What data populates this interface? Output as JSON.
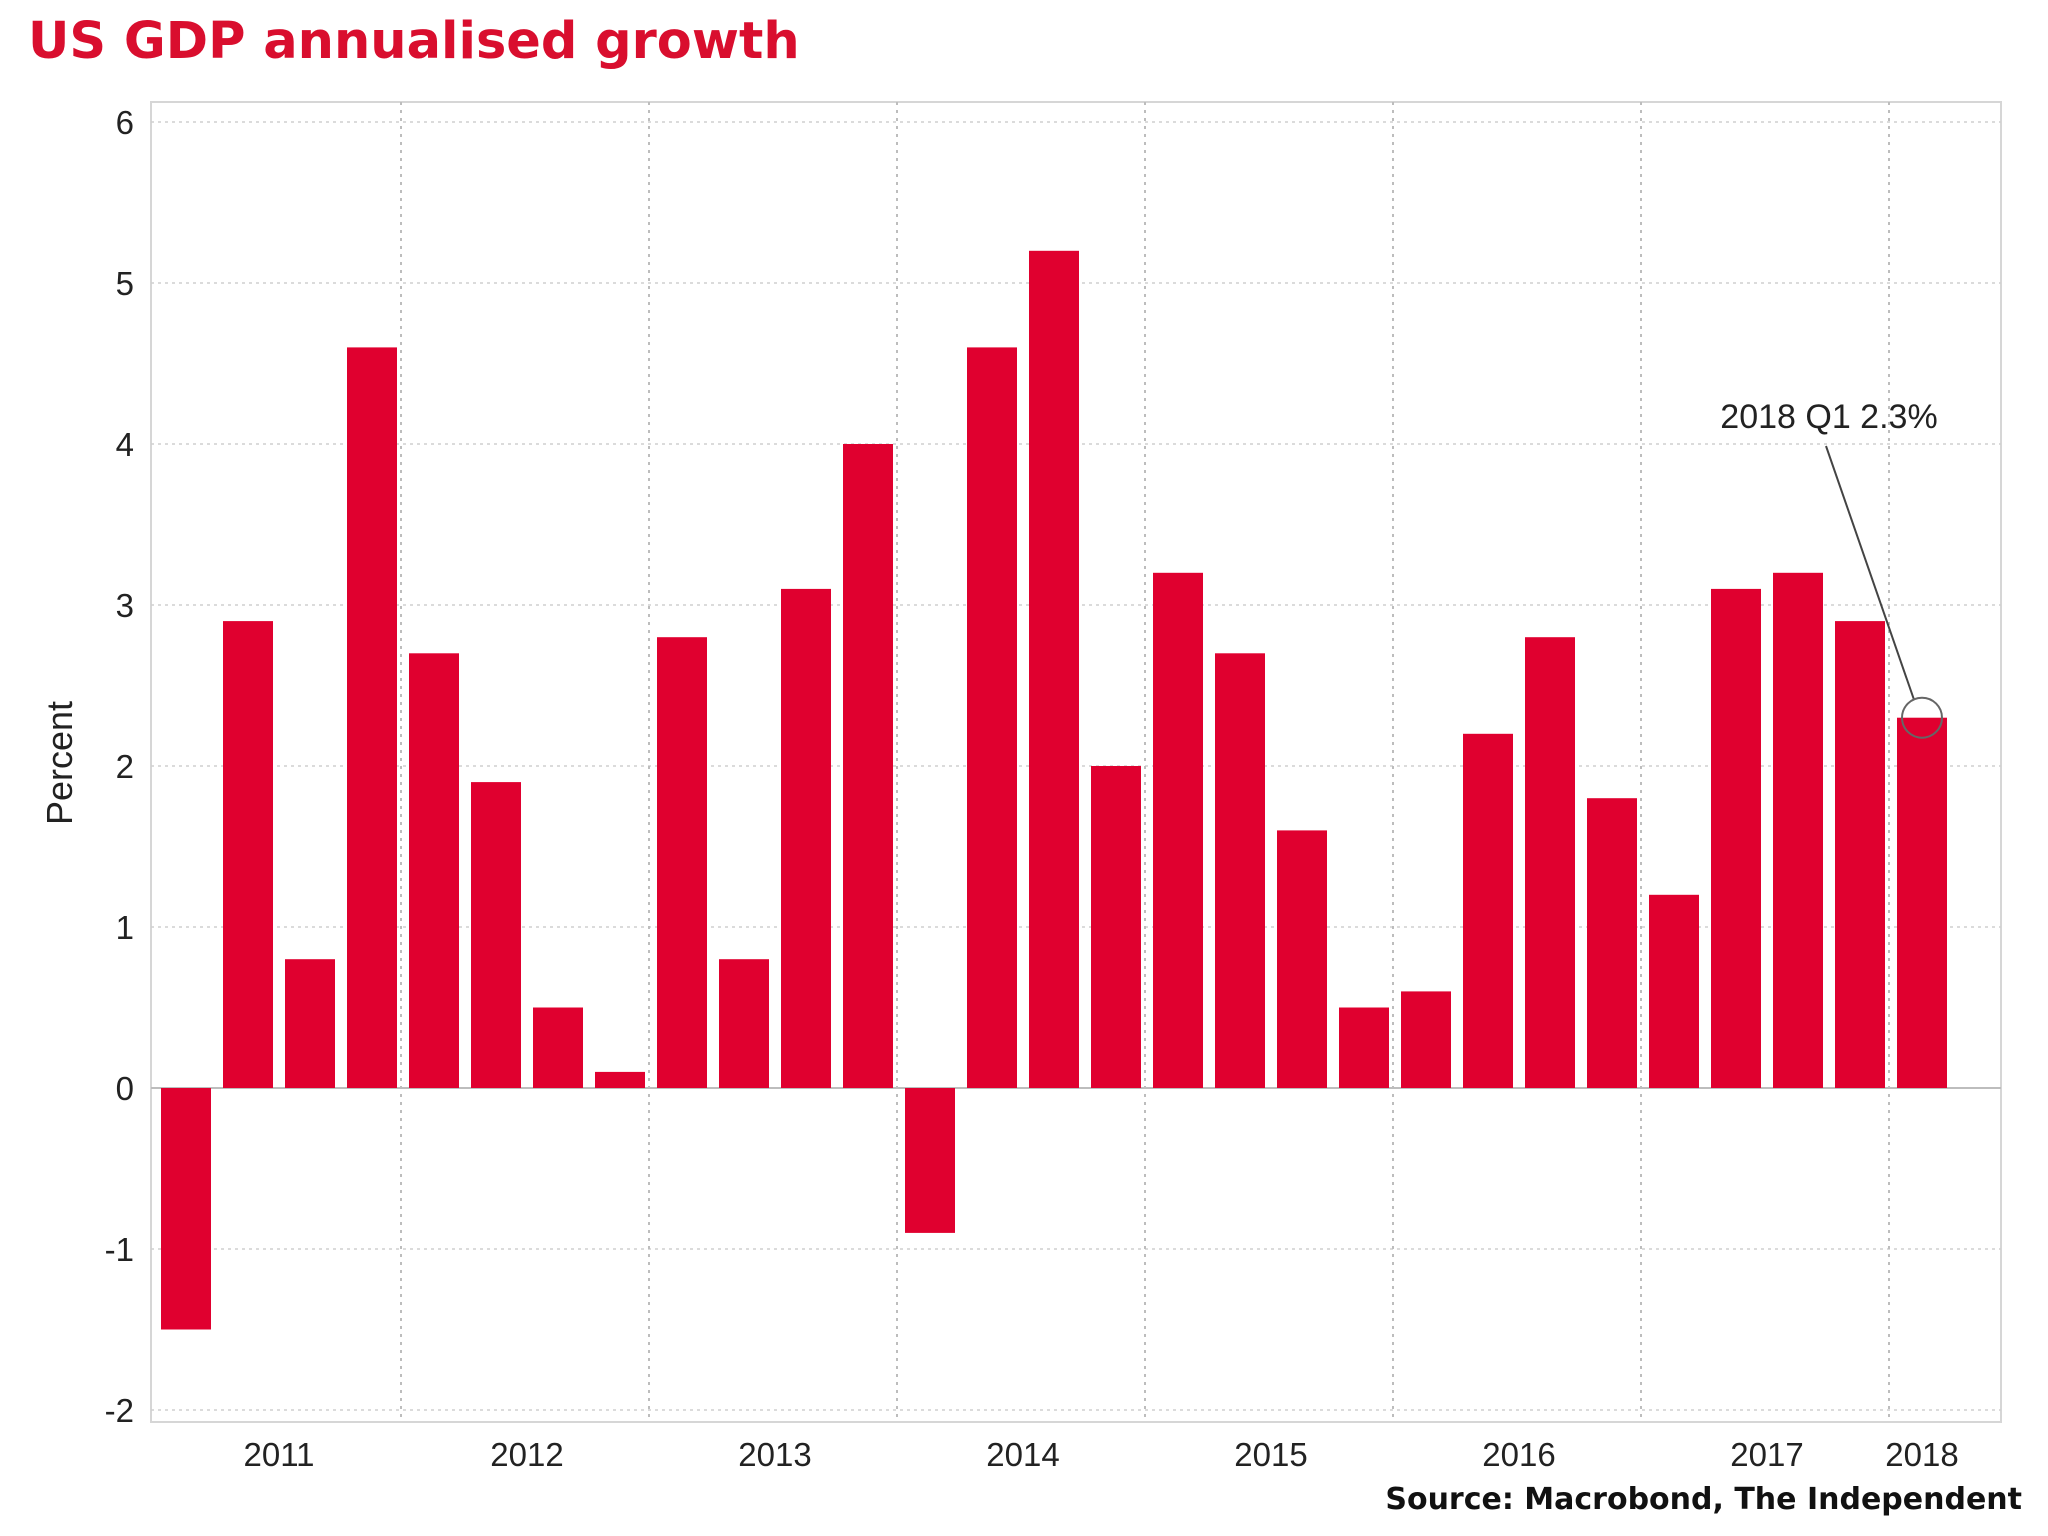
{
  "chart_data": {
    "type": "bar",
    "title": "US GDP annualised growth",
    "ylabel": "Percent",
    "xlabel": "",
    "ylim": [
      -2,
      6
    ],
    "y_ticks": [
      6,
      5,
      4,
      3,
      2,
      1,
      0,
      -1,
      -2
    ],
    "grid": true,
    "colors": {
      "bar": "#e0002f",
      "title": "#d90e2e"
    },
    "years": [
      "2011",
      "2012",
      "2013",
      "2014",
      "2015",
      "2016",
      "2017",
      "2018"
    ],
    "categories": [
      "2011 Q1",
      "2011 Q2",
      "2011 Q3",
      "2011 Q4",
      "2012 Q1",
      "2012 Q2",
      "2012 Q3",
      "2012 Q4",
      "2013 Q1",
      "2013 Q2",
      "2013 Q3",
      "2013 Q4",
      "2014 Q1",
      "2014 Q2",
      "2014 Q3",
      "2014 Q4",
      "2015 Q1",
      "2015 Q2",
      "2015 Q3",
      "2015 Q4",
      "2016 Q1",
      "2016 Q2",
      "2016 Q3",
      "2016 Q4",
      "2017 Q1",
      "2017 Q2",
      "2017 Q3",
      "2017 Q4",
      "2018 Q1"
    ],
    "values": [
      -1.5,
      2.9,
      0.8,
      4.6,
      2.7,
      1.9,
      0.5,
      0.1,
      2.8,
      0.8,
      3.1,
      4.0,
      -0.9,
      4.6,
      5.2,
      2.0,
      3.2,
      2.7,
      1.6,
      0.5,
      0.6,
      2.2,
      2.8,
      1.8,
      1.2,
      3.1,
      3.2,
      2.9,
      2.3
    ],
    "annotation": {
      "text": "2018 Q1 2.3%",
      "target_index": 28
    },
    "source": "Source: Macrobond, The Independent"
  }
}
